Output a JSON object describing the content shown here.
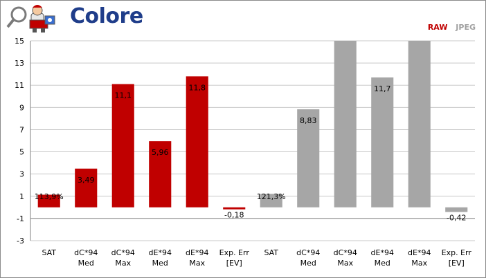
{
  "header": {
    "title": "Colore",
    "logo_icon": "cartoon-mascot-icon"
  },
  "colors": {
    "raw": "#c00000",
    "jpeg": "#a6a6a6",
    "title": "#1f3d8a",
    "grid": "#c8c8c8",
    "axis": "#808080"
  },
  "chart_data": {
    "type": "bar",
    "title": "",
    "xlabel": "",
    "ylabel": "",
    "ylim": [
      -3,
      15
    ],
    "yticks": [
      -3,
      -1,
      1,
      3,
      5,
      7,
      9,
      11,
      13,
      15
    ],
    "grid": true,
    "legend_position": "top-right",
    "series": [
      {
        "name": "RAW",
        "color": "#c00000"
      },
      {
        "name": "JPEG",
        "color": "#a6a6a6"
      }
    ],
    "bars": [
      {
        "category": [
          "SAT"
        ],
        "value": 1.139,
        "label": "113,9%",
        "series": "RAW"
      },
      {
        "category": [
          "dC*94",
          "Med"
        ],
        "value": 3.49,
        "label": "3,49",
        "series": "RAW"
      },
      {
        "category": [
          "dC*94",
          "Max"
        ],
        "value": 11.1,
        "label": "11,1",
        "series": "RAW"
      },
      {
        "category": [
          "dE*94",
          "Med"
        ],
        "value": 5.96,
        "label": "5,96",
        "series": "RAW"
      },
      {
        "category": [
          "dE*94",
          "Max"
        ],
        "value": 11.8,
        "label": "11,8",
        "series": "RAW"
      },
      {
        "category": [
          "Exp. Err",
          "[EV]"
        ],
        "value": -0.18,
        "label": "-0,18",
        "series": "RAW"
      },
      {
        "category": [
          "SAT"
        ],
        "value": 1.213,
        "label": "121,3%",
        "series": "JPEG"
      },
      {
        "category": [
          "dC*94",
          "Med"
        ],
        "value": 8.83,
        "label": "8,83",
        "series": "JPEG"
      },
      {
        "category": [
          "dC*94",
          "Max"
        ],
        "value": 15,
        "label": "",
        "series": "JPEG"
      },
      {
        "category": [
          "dE*94",
          "Med"
        ],
        "value": 11.7,
        "label": "11,7",
        "series": "JPEG"
      },
      {
        "category": [
          "dE*94",
          "Max"
        ],
        "value": 15,
        "label": "",
        "series": "JPEG"
      },
      {
        "category": [
          "Exp. Err",
          "[EV]"
        ],
        "value": -0.42,
        "label": "-0,42",
        "series": "JPEG"
      }
    ]
  }
}
